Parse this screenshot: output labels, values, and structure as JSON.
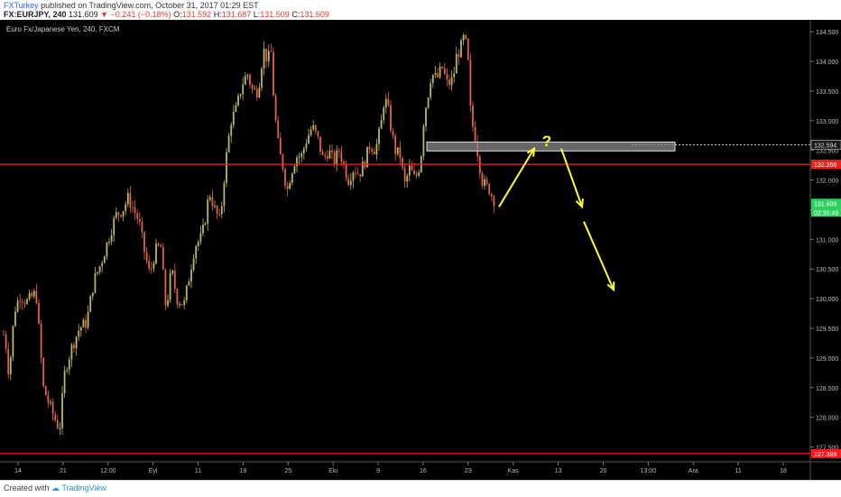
{
  "header": {
    "author": "FXTurkey",
    "published_text": " published on TradingView.com, October 31, 2017 01:29 EST",
    "symbol": "FX:EURJPY, 240",
    "last_price": "131.609",
    "change": "−0.241 (−0.18%)",
    "open_label": "O:",
    "open": "131.592",
    "high_label": "H:",
    "high": "131.687",
    "low_label": "L:",
    "low": "131.509",
    "close_label": "C:",
    "close": "131.609"
  },
  "chart_data": {
    "type": "candlestick",
    "title": "Euro Fx/Japanese Yen, 240, FXCM",
    "ylim": [
      127.25,
      134.7
    ],
    "y_ticks": [
      "134.500",
      "134.000",
      "133.500",
      "133.000",
      "132.500",
      "132.000",
      "131.500",
      "131.000",
      "130.500",
      "130.000",
      "129.500",
      "129.000",
      "128.500",
      "128.000",
      "127.500"
    ],
    "x_ticks": [
      "14",
      "21",
      "12:00",
      "Eyl",
      "11",
      "18",
      "25",
      "Eki",
      "9",
      "16",
      "23",
      "Kas",
      "13",
      "20",
      "13:00",
      "Ara",
      "11",
      "18"
    ],
    "key_prices": [
      {
        "price": "132.594",
        "value": 132.594,
        "style": "dotted",
        "color": "#cccccc"
      },
      {
        "price": "132.266",
        "value": 132.266,
        "style": "solid",
        "color": "#ff1a1a"
      },
      {
        "price": "127.389",
        "value": 127.389,
        "style": "solid",
        "color": "#ff1a1a"
      }
    ],
    "current_price": {
      "price": "131.609",
      "countdown": "02:30:49",
      "value": 131.609,
      "color": "#2bd35e"
    },
    "zone": {
      "top": 132.64,
      "bottom": 132.49
    },
    "annotation": "?",
    "path_keypoints": [
      [
        0,
        129.6
      ],
      [
        6,
        129.3
      ],
      [
        10,
        128.7
      ],
      [
        16,
        129.8
      ],
      [
        22,
        130.05
      ],
      [
        30,
        129.95
      ],
      [
        40,
        130.1
      ],
      [
        48,
        128.5
      ],
      [
        55,
        128.2
      ],
      [
        60,
        128.0
      ],
      [
        66,
        127.8
      ],
      [
        72,
        128.8
      ],
      [
        80,
        129.2
      ],
      [
        88,
        129.5
      ],
      [
        96,
        129.6
      ],
      [
        104,
        130.3
      ],
      [
        112,
        130.6
      ],
      [
        120,
        131.0
      ],
      [
        128,
        131.4
      ],
      [
        136,
        131.5
      ],
      [
        142,
        131.7
      ],
      [
        148,
        131.5
      ],
      [
        154,
        131.3
      ],
      [
        160,
        130.8
      ],
      [
        166,
        130.4
      ],
      [
        172,
        130.8
      ],
      [
        178,
        130.9
      ],
      [
        184,
        129.8
      ],
      [
        190,
        130.5
      ],
      [
        196,
        130.0
      ],
      [
        204,
        129.9
      ],
      [
        210,
        130.4
      ],
      [
        216,
        130.9
      ],
      [
        222,
        131.0
      ],
      [
        226,
        131.2
      ],
      [
        232,
        131.8
      ],
      [
        238,
        131.5
      ],
      [
        244,
        131.3
      ],
      [
        250,
        132.3
      ],
      [
        256,
        133.0
      ],
      [
        262,
        133.2
      ],
      [
        268,
        133.6
      ],
      [
        274,
        133.8
      ],
      [
        280,
        133.5
      ],
      [
        286,
        133.5
      ],
      [
        292,
        134.2
      ],
      [
        297,
        134.0
      ],
      [
        300,
        134.25
      ],
      [
        304,
        133.2
      ],
      [
        309,
        132.5
      ],
      [
        314,
        132.2
      ],
      [
        318,
        131.8
      ],
      [
        322,
        132.1
      ],
      [
        328,
        132.4
      ],
      [
        334,
        132.4
      ],
      [
        340,
        132.7
      ],
      [
        346,
        132.9
      ],
      [
        352,
        132.7
      ],
      [
        358,
        132.35
      ],
      [
        364,
        132.5
      ],
      [
        370,
        132.3
      ],
      [
        376,
        132.5
      ],
      [
        382,
        132.2
      ],
      [
        386,
        132.0
      ],
      [
        392,
        132.2
      ],
      [
        398,
        132.1
      ],
      [
        404,
        132.3
      ],
      [
        410,
        132.6
      ],
      [
        416,
        132.5
      ],
      [
        422,
        132.9
      ],
      [
        426,
        133.4
      ],
      [
        430,
        133.2
      ],
      [
        434,
        132.8
      ],
      [
        438,
        132.5
      ],
      [
        444,
        132.4
      ],
      [
        448,
        131.9
      ],
      [
        454,
        132.2
      ],
      [
        460,
        132.0
      ],
      [
        466,
        132.3
      ],
      [
        470,
        133.1
      ],
      [
        474,
        133.4
      ],
      [
        478,
        133.8
      ],
      [
        484,
        133.7
      ],
      [
        490,
        133.9
      ],
      [
        496,
        133.6
      ],
      [
        502,
        133.7
      ],
      [
        506,
        134.1
      ],
      [
        510,
        134.2
      ],
      [
        514,
        134.4
      ],
      [
        518,
        134.2
      ],
      [
        522,
        133.0
      ],
      [
        526,
        132.8
      ],
      [
        530,
        132.4
      ],
      [
        534,
        132.0
      ],
      [
        538,
        131.9
      ],
      [
        542,
        131.85
      ],
      [
        546,
        131.7
      ],
      [
        550,
        131.6
      ]
    ],
    "arrows": [
      {
        "from": [
          553,
          131.55
        ],
        "to": [
          592,
          132.53
        ]
      },
      {
        "from": [
          622,
          132.53
        ],
        "to": [
          645,
          131.55
        ]
      },
      {
        "from": [
          647,
          131.3
        ],
        "to": [
          680,
          130.15
        ]
      }
    ]
  },
  "footer": {
    "created_with": "Created with",
    "logo_text": "TradingView"
  }
}
